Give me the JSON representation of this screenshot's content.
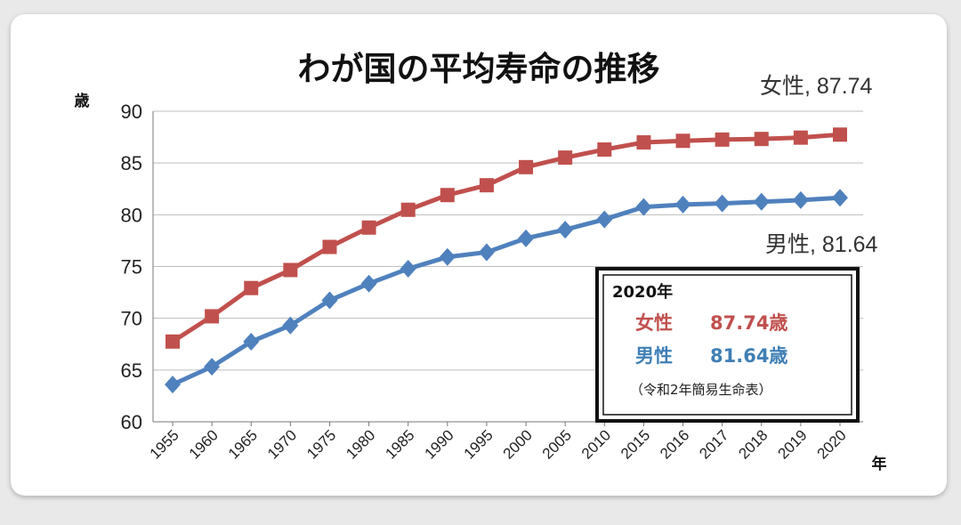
{
  "chart_data": {
    "type": "line",
    "title": "わが国の平均寿命の推移",
    "ylabel": "歳",
    "xlabel": "年",
    "ylim": [
      60,
      90
    ],
    "yticks": [
      "60",
      "65",
      "70",
      "75",
      "80",
      "85",
      "90"
    ],
    "categories": [
      "1955",
      "1960",
      "1965",
      "1970",
      "1975",
      "1980",
      "1985",
      "1990",
      "1995",
      "2000",
      "2005",
      "2010",
      "2015",
      "2016",
      "2017",
      "2018",
      "2019",
      "2020"
    ],
    "grid": true,
    "series": [
      {
        "name": "女性",
        "color": "#c0504d",
        "marker": "square",
        "values": [
          67.75,
          70.19,
          72.92,
          74.66,
          76.89,
          78.76,
          80.48,
          81.9,
          82.85,
          84.6,
          85.52,
          86.3,
          86.99,
          87.14,
          87.26,
          87.32,
          87.45,
          87.74
        ],
        "end_label": "女性, 87.74"
      },
      {
        "name": "男性",
        "color": "#4f81bd",
        "marker": "diamond",
        "values": [
          63.6,
          65.32,
          67.74,
          69.31,
          71.73,
          73.35,
          74.78,
          75.92,
          76.38,
          77.72,
          78.56,
          79.55,
          80.75,
          80.98,
          81.09,
          81.25,
          81.41,
          81.64
        ],
        "end_label": "男性, 81.64"
      }
    ],
    "annotation": {
      "year": "2020年",
      "female_label": "女性",
      "female_value": "87.74歳",
      "male_label": "男性",
      "male_value": "81.64歳",
      "source": "（令和2年簡易生命表）"
    }
  }
}
